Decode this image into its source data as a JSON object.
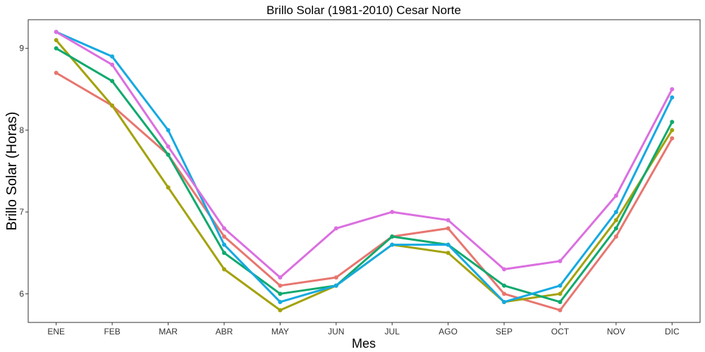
{
  "chart_data": {
    "type": "line",
    "title": "Brillo Solar (1981-2010)  Cesar Norte",
    "xlabel": "Mes",
    "ylabel": "Brillo Solar (Horas)",
    "categories": [
      "ENE",
      "FEB",
      "MAR",
      "ABR",
      "MAY",
      "JUN",
      "JUL",
      "AGO",
      "SEP",
      "OCT",
      "NOV",
      "DIC"
    ],
    "ylim": [
      5.65,
      9.35
    ],
    "yticks": [
      6,
      7,
      8,
      9
    ],
    "grid": false,
    "legend": "none",
    "series": [
      {
        "color": "#E7766F",
        "values": [
          8.7,
          8.3,
          7.7,
          6.7,
          6.1,
          6.2,
          6.7,
          6.8,
          6.0,
          5.8,
          6.7,
          7.9
        ]
      },
      {
        "color": "#A3A20A",
        "values": [
          9.1,
          8.3,
          7.3,
          6.3,
          5.8,
          6.1,
          6.6,
          6.5,
          5.9,
          6.0,
          6.9,
          8.0
        ]
      },
      {
        "color": "#10A96E",
        "values": [
          9.0,
          8.6,
          7.7,
          6.5,
          6.0,
          6.1,
          6.7,
          6.6,
          6.1,
          5.9,
          6.8,
          8.1
        ]
      },
      {
        "color": "#15A9E1",
        "values": [
          9.2,
          8.9,
          8.0,
          6.6,
          5.9,
          6.1,
          6.6,
          6.6,
          5.9,
          6.1,
          7.0,
          8.4
        ]
      },
      {
        "color": "#DB6FE0",
        "values": [
          9.2,
          8.8,
          7.8,
          6.8,
          6.2,
          6.8,
          7.0,
          6.9,
          6.3,
          6.4,
          7.2,
          8.5
        ]
      }
    ]
  }
}
